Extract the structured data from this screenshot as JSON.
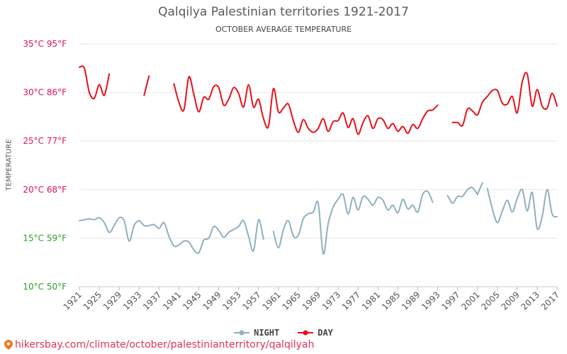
{
  "title": "Qalqilya Palestinian territories 1921-2017",
  "subtitle": "OCTOBER AVERAGE TEMPERATURE",
  "footer_text": "hikersbay.com/climate/october/palestinianterritory/qalqilyah",
  "chart_data": {
    "type": "line",
    "title": "Qalqilya Palestinian territories 1921-2017",
    "subtitle": "OCTOBER AVERAGE TEMPERATURE",
    "ylabel": "TEMPERATURE",
    "xlabel": "",
    "ylim": [
      10,
      35
    ],
    "xlim": [
      1921,
      2017
    ],
    "grid": true,
    "legend_position": "bottom-center",
    "y_ticks": [
      {
        "value": 10,
        "label": "10°C 50°F",
        "color": "#2ca02c"
      },
      {
        "value": 15,
        "label": "15°C 59°F",
        "color": "#2ca02c"
      },
      {
        "value": 20,
        "label": "20°C 68°F",
        "color": "#e0115f"
      },
      {
        "value": 25,
        "label": "25°C 77°F",
        "color": "#e0115f"
      },
      {
        "value": 30,
        "label": "30°C 86°F",
        "color": "#e0115f"
      },
      {
        "value": 35,
        "label": "35°C 95°F",
        "color": "#e0115f"
      }
    ],
    "x_ticks": [
      "1921",
      "1925",
      "1929",
      "1933",
      "1937",
      "1941",
      "1945",
      "1949",
      "1953",
      "1957",
      "1961",
      "1965",
      "1969",
      "1973",
      "1977",
      "1981",
      "1985",
      "1989",
      "1993",
      "1997",
      "2001",
      "2005",
      "2009",
      "2013",
      "2017"
    ],
    "series": [
      {
        "name": "NIGHT",
        "color": "#8fb0bd",
        "segments": [
          {
            "x": [
              1921,
              1922,
              1923,
              1924,
              1925,
              1926,
              1927,
              1928,
              1929,
              1930,
              1931,
              1932,
              1933,
              1934,
              1935,
              1936,
              1937,
              1938,
              1939,
              1940,
              1941,
              1942,
              1943,
              1944,
              1945,
              1946,
              1947,
              1948,
              1949,
              1950,
              1951,
              1952,
              1953,
              1954,
              1955,
              1956,
              1957,
              1958
            ],
            "y": [
              16.8,
              16.9,
              17.0,
              16.9,
              17.1,
              16.6,
              15.6,
              16.3,
              17.1,
              16.8,
              14.7,
              16.3,
              16.8,
              16.3,
              16.3,
              16.4,
              16.0,
              16.6,
              15.2,
              14.2,
              14.3,
              14.7,
              14.6,
              13.8,
              13.5,
              14.8,
              15.0,
              16.2,
              15.8,
              15.1,
              15.6,
              15.9,
              16.2,
              16.8,
              15.2,
              13.7,
              16.9,
              14.9
            ]
          },
          {
            "x": [
              1960,
              1961,
              1962,
              1963,
              1964,
              1965,
              1966,
              1967,
              1968,
              1969,
              1970,
              1971,
              1972,
              1973,
              1974,
              1975,
              1976,
              1977,
              1978,
              1979,
              1980,
              1981,
              1982,
              1983,
              1984,
              1985,
              1986,
              1987,
              1988,
              1989,
              1990,
              1991,
              1992,
              1993
            ],
            "y": [
              15.7,
              14.0,
              15.9,
              16.8,
              15.2,
              15.3,
              17.0,
              17.5,
              17.7,
              18.6,
              13.4,
              16.5,
              18.2,
              19.0,
              19.5,
              17.5,
              19.2,
              17.9,
              19.3,
              19.0,
              18.4,
              19.2,
              18.9,
              17.9,
              18.4,
              17.6,
              19.0,
              18.0,
              18.4,
              17.7,
              19.5,
              19.8,
              18.7,
              null
            ]
          },
          {
            "x": [
              1995,
              1996,
              1997,
              1998,
              1999,
              2000,
              2001
            ],
            "y": [
              19.4,
              18.6,
              19.3,
              19.3,
              20.0,
              20.2,
              19.5
            ]
          },
          {
            "x": [
              2001,
              2002
            ],
            "y": [
              19.5,
              20.7
            ]
          },
          {
            "x": [
              2003,
              2004,
              2005,
              2006,
              2007,
              2008,
              2009,
              2010,
              2011,
              2012,
              2013,
              2014,
              2015,
              2016,
              2017
            ],
            "y": [
              20.1,
              18.0,
              16.6,
              17.8,
              18.9,
              17.7,
              19.1,
              20.0,
              17.8,
              19.7,
              16.0,
              17.2,
              20.0,
              17.5,
              17.2
            ]
          }
        ]
      },
      {
        "name": "DAY",
        "color": "#e8101a",
        "segments": [
          {
            "x": [
              1921,
              1922,
              1923,
              1924,
              1925,
              1926,
              1927,
              1928
            ],
            "y": [
              32.6,
              32.5,
              30.0,
              29.4,
              30.8,
              29.7,
              31.9,
              null
            ]
          },
          {
            "x": [
              1934,
              1935
            ],
            "y": [
              29.7,
              31.7
            ]
          },
          {
            "x": [
              1940,
              1941,
              1942,
              1943,
              1944,
              1945,
              1946,
              1947,
              1948,
              1949,
              1950,
              1951,
              1952,
              1953,
              1954,
              1955,
              1956,
              1957,
              1958,
              1959,
              1960,
              1961,
              1962,
              1963,
              1964,
              1965,
              1966,
              1967,
              1968,
              1969,
              1970,
              1971,
              1972,
              1973,
              1974,
              1975,
              1976,
              1977,
              1978,
              1979,
              1980,
              1981,
              1982,
              1983,
              1984,
              1985,
              1986,
              1987,
              1988,
              1989,
              1990,
              1991,
              1992,
              1993,
              1994
            ],
            "y": [
              30.9,
              29.0,
              28.2,
              31.6,
              29.8,
              28.0,
              29.5,
              29.3,
              30.6,
              30.5,
              28.7,
              29.3,
              30.5,
              29.9,
              28.5,
              30.8,
              28.5,
              29.3,
              27.3,
              26.5,
              30.4,
              28.0,
              28.4,
              28.8,
              27.1,
              25.9,
              27.2,
              26.3,
              25.9,
              26.3,
              27.3,
              26.0,
              27.0,
              27.1,
              27.9,
              26.4,
              27.3,
              25.7,
              26.9,
              27.6,
              26.3,
              27.3,
              27.2,
              26.3,
              26.8,
              26.0,
              26.5,
              25.8,
              26.7,
              26.3,
              27.3,
              28.1,
              28.2,
              28.7,
              null
            ]
          },
          {
            "x": [
              1996,
              1997,
              1998,
              1999,
              2000,
              2001,
              2002,
              2003,
              2004,
              2005,
              2006,
              2007,
              2008,
              2009,
              2010,
              2011,
              2012,
              2013,
              2014,
              2015,
              2016,
              2017
            ],
            "y": [
              26.9,
              26.9,
              26.6,
              28.3,
              28.1,
              27.7,
              29.0,
              29.6,
              30.2,
              30.2,
              28.9,
              28.8,
              29.6,
              27.9,
              31.1,
              31.9,
              28.6,
              30.3,
              28.6,
              28.4,
              29.9,
              28.6
            ]
          }
        ]
      }
    ]
  }
}
